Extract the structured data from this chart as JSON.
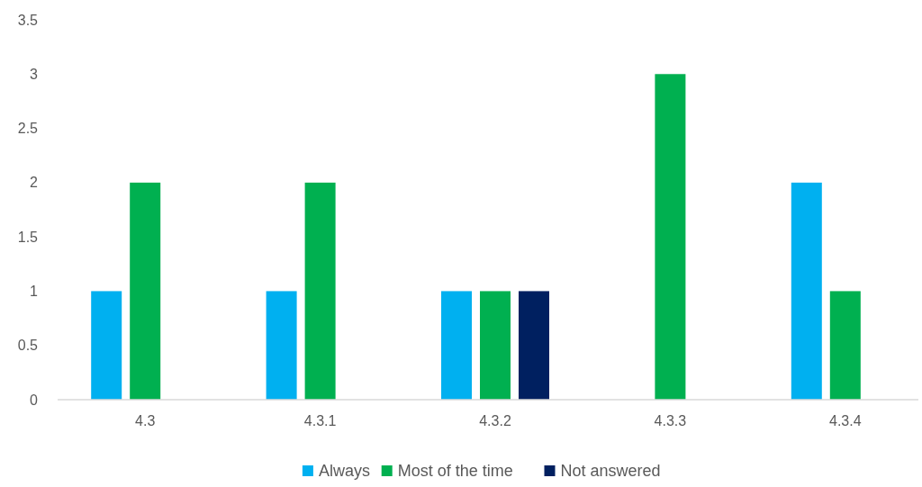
{
  "chart_data": {
    "type": "bar",
    "categories": [
      "4.3",
      "4.3.1",
      "4.3.2",
      "4.3.3",
      "4.3.4"
    ],
    "series": [
      {
        "name": "Always",
        "color": "#00b0f0",
        "values": [
          1,
          1,
          1,
          null,
          2
        ]
      },
      {
        "name": "Most of the time",
        "color": "#00b050",
        "values": [
          2,
          2,
          1,
          3,
          1
        ]
      },
      {
        "name": "Not answered",
        "color": "#002060",
        "values": [
          null,
          null,
          1,
          null,
          null
        ]
      }
    ],
    "ylim": [
      0,
      3.5
    ],
    "yticks": [
      0,
      0.5,
      1,
      1.5,
      2,
      2.5,
      3,
      3.5
    ],
    "grid": false,
    "legend": "bottom"
  }
}
